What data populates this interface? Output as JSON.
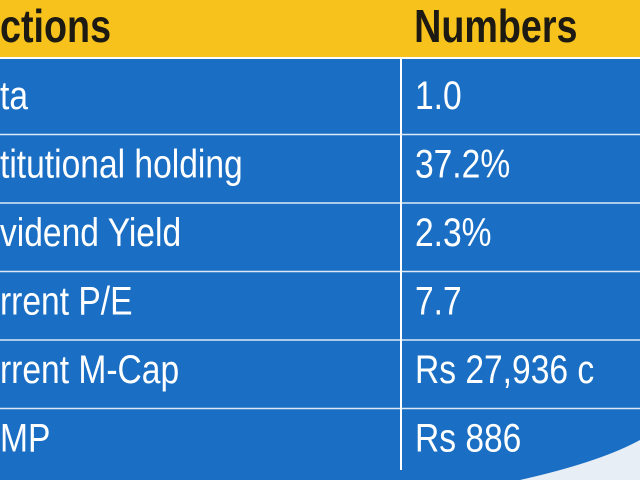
{
  "table": {
    "header": [
      "ctions",
      "Numbers"
    ],
    "rows": [
      [
        "ta",
        "1.0"
      ],
      [
        "titutional holding",
        "37.2%"
      ],
      [
        "vidend Yield",
        "2.3%"
      ],
      [
        "rrent P/E",
        "7.7"
      ],
      [
        "rrent M-Cap",
        "Rs 27,936 c"
      ],
      [
        "MP",
        "Rs 886"
      ]
    ]
  }
}
